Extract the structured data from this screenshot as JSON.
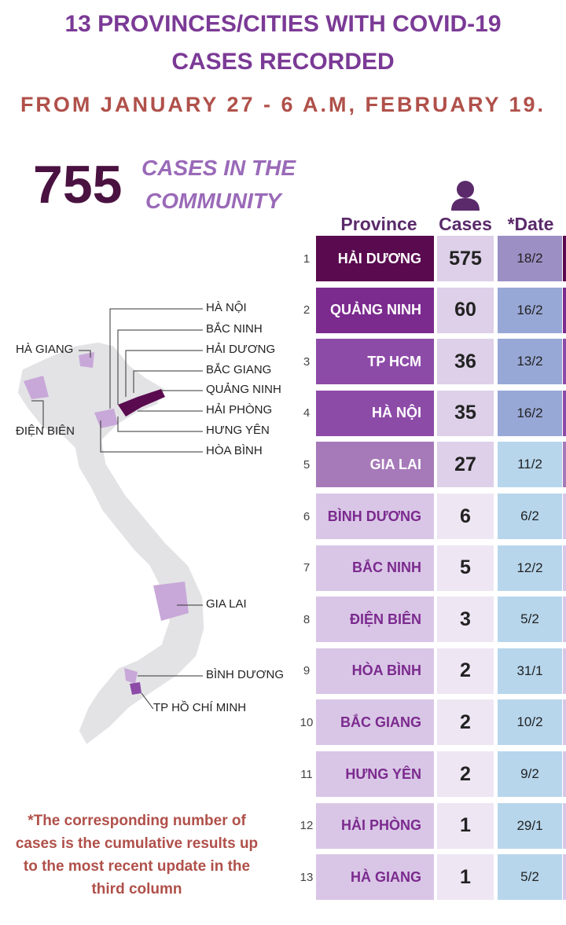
{
  "header": {
    "title_line1": "13 PROVINCES/CITIES WITH COVID-19",
    "title_line2": "CASES RECORDED",
    "subtitle": "FROM JANUARY 27 - 6 A.M, FEBRUARY 19."
  },
  "summary": {
    "number": "755",
    "text_line1": "CASES IN THE",
    "text_line2": "COMMUNITY"
  },
  "table": {
    "headers": [
      "Province",
      "Cases",
      "*Date"
    ],
    "rows": [
      [
        "1",
        "HẢI DƯƠNG",
        "575",
        "18/2"
      ],
      [
        "2",
        "QUẢNG NINH",
        "60",
        "16/2"
      ],
      [
        "3",
        "TP HCM",
        "36",
        "13/2"
      ],
      [
        "4",
        "HÀ NỘI",
        "35",
        "16/2"
      ],
      [
        "5",
        "GIA LAI",
        "27",
        "11/2"
      ],
      [
        "6",
        "BÌNH DƯƠNG",
        "6",
        "6/2"
      ],
      [
        "7",
        "BẮC NINH",
        "5",
        "12/2"
      ],
      [
        "8",
        "ĐIỆN BIÊN",
        "3",
        "5/2"
      ],
      [
        "9",
        "HÒA BÌNH",
        "2",
        "31/1"
      ],
      [
        "10",
        "BẮC GIANG",
        "2",
        "10/2"
      ],
      [
        "11",
        "HƯNG YÊN",
        "2",
        "9/2"
      ],
      [
        "12",
        "HẢI PHÒNG",
        "1",
        "29/1"
      ],
      [
        "13",
        "HÀ GIANG",
        "1",
        "5/2"
      ]
    ]
  },
  "map": {
    "labels": [
      "HÀ NỘI",
      "BẮC NINH",
      "HẢI DƯƠNG",
      "BẮC GIANG",
      "QUẢNG NINH",
      "HẢI PHÒNG",
      "HƯNG YÊN",
      "HÒA BÌNH",
      "HÀ GIANG",
      "ĐIỆN BIÊN",
      "GIA LAI",
      "BÌNH DƯƠNG",
      "TP HỒ CHÍ MINH"
    ]
  },
  "footnote": "*The corresponding number of cases is the cumulative results up to the most recent update in the third column"
}
